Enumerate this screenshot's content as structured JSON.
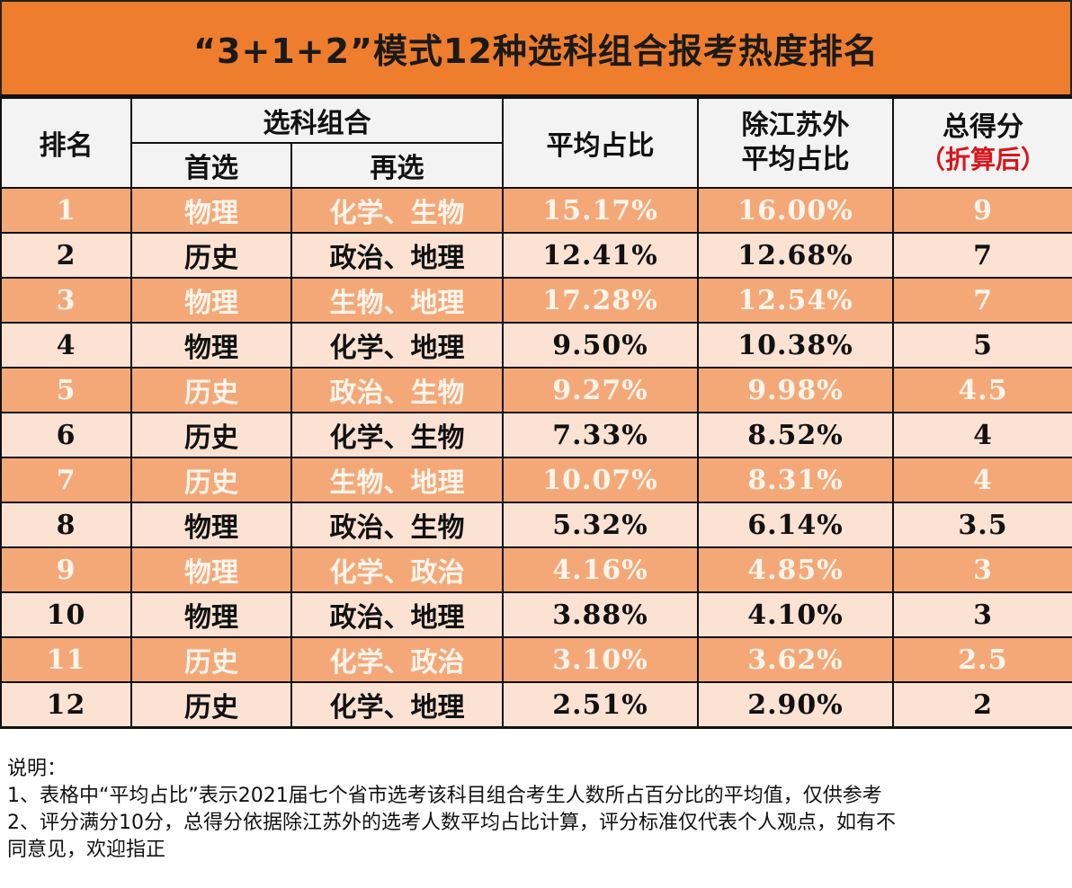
{
  "title": "“3+1+2”模式12种选科组合报考热度排名",
  "colors": {
    "title_bg": "#ee7d2d",
    "highlight_row_bg": "#f4a878",
    "plain_row_bg": "#fbe2d3",
    "header_bg": "#f3f3f3",
    "note_red": "#d9141b"
  },
  "table": {
    "headers": {
      "rank": "排名",
      "combo": "选科组合",
      "first_choice": "首选",
      "second_choice": "再选",
      "avg_share": "平均占比",
      "avg_share_ex_js_line1": "除江苏外",
      "avg_share_ex_js_line2": "平均占比",
      "score_line1": "总得分",
      "score_line2": "（折算后）"
    },
    "rows": [
      {
        "rank": "1",
        "first": "物理",
        "second": "化学、生物",
        "avg": "15.17%",
        "avg_ex": "16.00%",
        "score": "9"
      },
      {
        "rank": "2",
        "first": "历史",
        "second": "政治、地理",
        "avg": "12.41%",
        "avg_ex": "12.68%",
        "score": "7"
      },
      {
        "rank": "3",
        "first": "物理",
        "second": "生物、地理",
        "avg": "17.28%",
        "avg_ex": "12.54%",
        "score": "7"
      },
      {
        "rank": "4",
        "first": "物理",
        "second": "化学、地理",
        "avg": "9.50%",
        "avg_ex": "10.38%",
        "score": "5"
      },
      {
        "rank": "5",
        "first": "历史",
        "second": "政治、生物",
        "avg": "9.27%",
        "avg_ex": "9.98%",
        "score": "4.5"
      },
      {
        "rank": "6",
        "first": "历史",
        "second": "化学、生物",
        "avg": "7.33%",
        "avg_ex": "8.52%",
        "score": "4"
      },
      {
        "rank": "7",
        "first": "历史",
        "second": "生物、地理",
        "avg": "10.07%",
        "avg_ex": "8.31%",
        "score": "4"
      },
      {
        "rank": "8",
        "first": "物理",
        "second": "政治、生物",
        "avg": "5.32%",
        "avg_ex": "6.14%",
        "score": "3.5"
      },
      {
        "rank": "9",
        "first": "物理",
        "second": "化学、政治",
        "avg": "4.16%",
        "avg_ex": "4.85%",
        "score": "3"
      },
      {
        "rank": "10",
        "first": "物理",
        "second": "政治、地理",
        "avg": "3.88%",
        "avg_ex": "4.10%",
        "score": "3"
      },
      {
        "rank": "11",
        "first": "历史",
        "second": "化学、政治",
        "avg": "3.10%",
        "avg_ex": "3.62%",
        "score": "2.5"
      },
      {
        "rank": "12",
        "first": "历史",
        "second": "化学、地理",
        "avg": "2.51%",
        "avg_ex": "2.90%",
        "score": "2"
      }
    ]
  },
  "notes": {
    "heading": "说明：",
    "line1": "1、表格中“平均占比”表示2021届七个省市选考该科目组合考生人数所占百分比的平均值，仅供参考",
    "line2": "2、评分满分10分，总得分依据除江苏外的选考人数平均占比计算，评分标准仅代表个人观点，如有不",
    "line3": "同意见，欢迎指正"
  }
}
